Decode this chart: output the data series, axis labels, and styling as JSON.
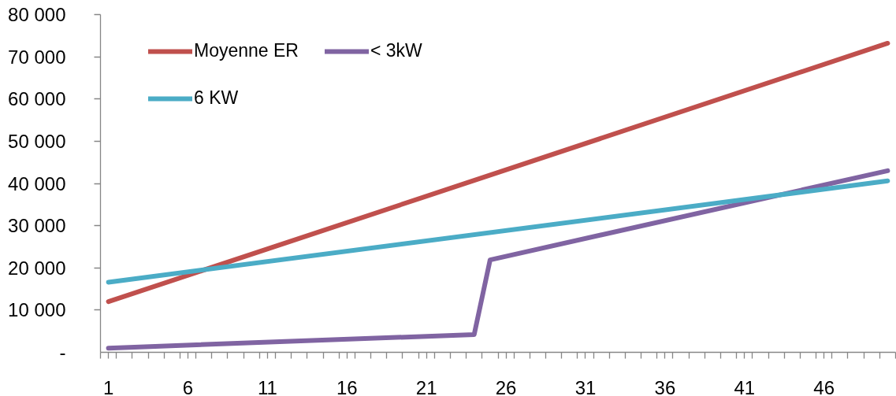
{
  "chart_data": {
    "type": "line",
    "series": [
      {
        "name": "Moyenne ER",
        "color": "#c0504d",
        "x": [
          1,
          50
        ],
        "values": [
          12000,
          73200
        ]
      },
      {
        "name": "< 3kW",
        "color": "#8064a2",
        "x": [
          1,
          24,
          25,
          50
        ],
        "values": [
          1000,
          4200,
          21900,
          43000
        ]
      },
      {
        "name": "6 KW",
        "color": "#4bacc6",
        "x": [
          1,
          50
        ],
        "values": [
          16600,
          40600
        ]
      }
    ],
    "xlim": [
      0.5,
      50.5
    ],
    "xticks": [
      {
        "value": 0.5,
        "label": null
      },
      1,
      {
        "value": 1.5,
        "label": null
      },
      {
        "value": 2.5,
        "label": null
      },
      {
        "value": 3.5,
        "label": null
      },
      {
        "value": 4.5,
        "label": null
      },
      {
        "value": 5.5,
        "label": null
      },
      6,
      {
        "value": 6.5,
        "label": null
      },
      {
        "value": 7.5,
        "label": null
      },
      {
        "value": 8.5,
        "label": null
      },
      {
        "value": 9.5,
        "label": null
      },
      {
        "value": 10.5,
        "label": null
      },
      11,
      {
        "value": 11.5,
        "label": null
      },
      {
        "value": 12.5,
        "label": null
      },
      {
        "value": 13.5,
        "label": null
      },
      {
        "value": 14.5,
        "label": null
      },
      {
        "value": 15.5,
        "label": null
      },
      16,
      {
        "value": 16.5,
        "label": null
      },
      {
        "value": 17.5,
        "label": null
      },
      {
        "value": 18.5,
        "label": null
      },
      {
        "value": 19.5,
        "label": null
      },
      {
        "value": 20.5,
        "label": null
      },
      21,
      {
        "value": 21.5,
        "label": null
      },
      {
        "value": 22.5,
        "label": null
      },
      {
        "value": 23.5,
        "label": null
      },
      {
        "value": 24.5,
        "label": null
      },
      {
        "value": 25.5,
        "label": null
      },
      26,
      {
        "value": 26.5,
        "label": null
      },
      {
        "value": 27.5,
        "label": null
      },
      {
        "value": 28.5,
        "label": null
      },
      {
        "value": 29.5,
        "label": null
      },
      {
        "value": 30.5,
        "label": null
      },
      31,
      {
        "value": 31.5,
        "label": null
      },
      {
        "value": 32.5,
        "label": null
      },
      {
        "value": 33.5,
        "label": null
      },
      {
        "value": 34.5,
        "label": null
      },
      {
        "value": 35.5,
        "label": null
      },
      36,
      {
        "value": 36.5,
        "label": null
      },
      {
        "value": 37.5,
        "label": null
      },
      {
        "value": 38.5,
        "label": null
      },
      {
        "value": 39.5,
        "label": null
      },
      {
        "value": 40.5,
        "label": null
      },
      41,
      {
        "value": 41.5,
        "label": null
      },
      {
        "value": 42.5,
        "label": null
      },
      {
        "value": 43.5,
        "label": null
      },
      {
        "value": 44.5,
        "label": null
      },
      {
        "value": 45.5,
        "label": null
      },
      46,
      {
        "value": 46.5,
        "label": null
      },
      {
        "value": 47.5,
        "label": null
      },
      {
        "value": 48.5,
        "label": null
      },
      {
        "value": 49.5,
        "label": null
      },
      {
        "value": 50.5,
        "label": null
      }
    ],
    "ylim": [
      0,
      80000
    ],
    "yticks": [
      {
        "value": 0,
        "label": "-"
      },
      {
        "value": 10000,
        "label": "10 000"
      },
      {
        "value": 20000,
        "label": "20 000"
      },
      {
        "value": 30000,
        "label": "30 000"
      },
      {
        "value": 40000,
        "label": "40 000"
      },
      {
        "value": 50000,
        "label": "50 000"
      },
      {
        "value": 60000,
        "label": "60 000"
      },
      {
        "value": 70000,
        "label": "70 000"
      },
      {
        "value": 80000,
        "label": "80 000"
      }
    ],
    "grid": false,
    "legend": "top left",
    "line_style": "solid"
  }
}
